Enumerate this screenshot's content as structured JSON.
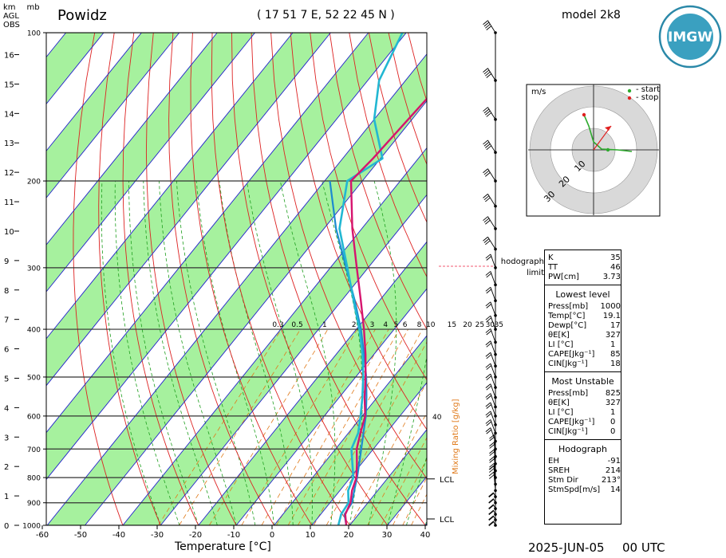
{
  "header": {
    "station": "Powidz",
    "coords": "( 17 51 7 E, 52 22 45 N )",
    "model": "model 2k8",
    "logo_text": "IMGW",
    "date": "2025-JUN-05",
    "time": "00 UTC"
  },
  "axes": {
    "km_label": "km",
    "agl_label": "AGL",
    "obs_label": "OBS",
    "mb_label": "mb",
    "xlabel": "Temperature [°C]",
    "mixing_label": "Mixing Ratio [g/kg]",
    "x_ticks": [
      "-60",
      "-50",
      "-40",
      "-30",
      "-20",
      "-10",
      "0",
      "10",
      "20",
      "30",
      "40"
    ],
    "p_ticks": [
      "100",
      "200",
      "300",
      "400",
      "500",
      "600",
      "700",
      "800",
      "900",
      "1000"
    ],
    "km_ticks": [
      "0",
      "1",
      "2",
      "3",
      "4",
      "5",
      "6",
      "7",
      "8",
      "9",
      "10",
      "11",
      "12",
      "13",
      "14",
      "15",
      "16"
    ],
    "mix_ticks": [
      "0.3",
      "0.5",
      "1",
      "2",
      "3",
      "4",
      "5",
      "6",
      "8",
      "10",
      "15",
      "20",
      "25",
      "30",
      "35",
      "40"
    ],
    "lcl_labels": [
      "LCL",
      "LCL"
    ]
  },
  "hodograph": {
    "unit": "m/s",
    "start_label": "- start",
    "stop_label": "- stop",
    "ring_labels": [
      "10",
      "20",
      "30"
    ],
    "limit_label": "hodograph",
    "limit_label2": "limit"
  },
  "indices": {
    "top": [
      {
        "k": "K",
        "v": "35"
      },
      {
        "k": "TT",
        "v": "46"
      },
      {
        "k": "PW[cm]",
        "v": "3.73"
      }
    ],
    "lowest_title": "Lowest level",
    "lowest": [
      {
        "k": "Press[mb]",
        "v": "1000"
      },
      {
        "k": "Temp[°C]",
        "v": "19.1"
      },
      {
        "k": "Dewp[°C]",
        "v": "17"
      },
      {
        "k": "θE[K]",
        "v": "327"
      },
      {
        "k": "LI [°C]",
        "v": "1"
      },
      {
        "k": "CAPE[Jkg⁻¹]",
        "v": "85"
      },
      {
        "k": "CIN[Jkg⁻¹]",
        "v": "18"
      }
    ],
    "unstable_title": "Most Unstable",
    "unstable": [
      {
        "k": "Press[mb]",
        "v": "825"
      },
      {
        "k": "θE[K]",
        "v": "327"
      },
      {
        "k": "LI [°C]",
        "v": "1"
      },
      {
        "k": "CAPE[Jkg⁻¹]",
        "v": "0"
      },
      {
        "k": "CIN[Jkg⁻¹]",
        "v": "0"
      }
    ],
    "hodo_title": "Hodograph",
    "hodo": [
      {
        "k": "EH",
        "v": "-91"
      },
      {
        "k": "SREH",
        "v": "214"
      },
      {
        "k": "Stm Dir",
        "v": "213°"
      },
      {
        "k": "StmSpd[m/s]",
        "v": "14"
      }
    ]
  },
  "colors": {
    "temperature": "#d6146e",
    "dewpoint": "#22b7d2",
    "parcel": "#1c8ad0",
    "band_green": "#a6f19e",
    "isotherm_blue": "#2222cc",
    "dry_adiabat": "#dd2222",
    "moist_adiabat": "#1e9e1e",
    "mixing_ratio": "#e07a1a"
  },
  "chart_data": {
    "type": "skew-t",
    "x_unit": "°C",
    "p_unit": "hPa",
    "temperature": [
      {
        "p": 1000,
        "t": 19.1
      },
      {
        "p": 950,
        "t": 16.5
      },
      {
        "p": 900,
        "t": 15.4
      },
      {
        "p": 850,
        "t": 13.2
      },
      {
        "p": 800,
        "t": 11.6
      },
      {
        "p": 750,
        "t": 8.8
      },
      {
        "p": 700,
        "t": 5.6
      },
      {
        "p": 650,
        "t": 3.2
      },
      {
        "p": 600,
        "t": 0.8
      },
      {
        "p": 550,
        "t": -3.3
      },
      {
        "p": 500,
        "t": -7.4
      },
      {
        "p": 450,
        "t": -12.2
      },
      {
        "p": 400,
        "t": -18.0
      },
      {
        "p": 350,
        "t": -24.9
      },
      {
        "p": 300,
        "t": -33.0
      },
      {
        "p": 250,
        "t": -42.5
      },
      {
        "p": 200,
        "t": -53.0
      },
      {
        "p": 180,
        "t": -52.0
      },
      {
        "p": 150,
        "t": -51.0
      },
      {
        "p": 125,
        "t": -50.0
      },
      {
        "p": 100,
        "t": -56.0
      }
    ],
    "dewpoint": [
      {
        "p": 1000,
        "t": 17.0
      },
      {
        "p": 950,
        "t": 15.4
      },
      {
        "p": 900,
        "t": 14.9
      },
      {
        "p": 850,
        "t": 12.2
      },
      {
        "p": 800,
        "t": 10.8
      },
      {
        "p": 750,
        "t": 7.6
      },
      {
        "p": 700,
        "t": 4.2
      },
      {
        "p": 650,
        "t": 2.6
      },
      {
        "p": 600,
        "t": -0.4
      },
      {
        "p": 550,
        "t": -3.9
      },
      {
        "p": 500,
        "t": -8.0
      },
      {
        "p": 450,
        "t": -13.0
      },
      {
        "p": 400,
        "t": -19.2
      },
      {
        "p": 350,
        "t": -26.8
      },
      {
        "p": 300,
        "t": -35.5
      },
      {
        "p": 250,
        "t": -45.9
      },
      {
        "p": 200,
        "t": -54.0
      },
      {
        "p": 180,
        "t": -49.5
      },
      {
        "p": 150,
        "t": -60.0
      },
      {
        "p": 125,
        "t": -67.0
      },
      {
        "p": 100,
        "t": -71.0
      }
    ],
    "parcel": [
      {
        "p": 1000,
        "t": 19.1
      },
      {
        "p": 950,
        "t": 16.3
      },
      {
        "p": 900,
        "t": 15.8
      },
      {
        "p": 850,
        "t": 13.8
      },
      {
        "p": 800,
        "t": 11.8
      },
      {
        "p": 750,
        "t": 9.4
      },
      {
        "p": 700,
        "t": 6.8
      },
      {
        "p": 650,
        "t": 4.0
      },
      {
        "p": 600,
        "t": 1.0
      },
      {
        "p": 550,
        "t": -2.8
      },
      {
        "p": 500,
        "t": -7.2
      },
      {
        "p": 450,
        "t": -12.6
      },
      {
        "p": 400,
        "t": -18.8
      },
      {
        "p": 350,
        "t": -26.5
      },
      {
        "p": 300,
        "t": -35.8
      },
      {
        "p": 250,
        "t": -46.8
      },
      {
        "p": 200,
        "t": -58.6
      }
    ]
  }
}
